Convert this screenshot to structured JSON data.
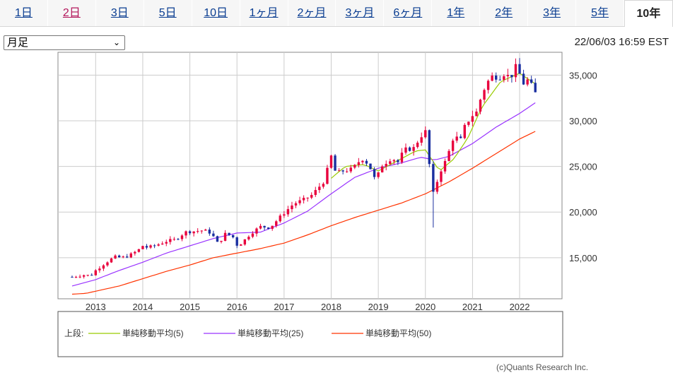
{
  "tabs": [
    {
      "label": "1日",
      "state": "normal"
    },
    {
      "label": "2日",
      "state": "visited"
    },
    {
      "label": "3日",
      "state": "normal"
    },
    {
      "label": "5日",
      "state": "normal"
    },
    {
      "label": "10日",
      "state": "normal"
    },
    {
      "label": "1ヶ月",
      "state": "normal"
    },
    {
      "label": "2ヶ月",
      "state": "normal"
    },
    {
      "label": "3ヶ月",
      "state": "normal"
    },
    {
      "label": "6ヶ月",
      "state": "normal"
    },
    {
      "label": "1年",
      "state": "normal"
    },
    {
      "label": "2年",
      "state": "normal"
    },
    {
      "label": "3年",
      "state": "normal"
    },
    {
      "label": "5年",
      "state": "normal"
    },
    {
      "label": "10年",
      "state": "active"
    }
  ],
  "select": {
    "value": "月足"
  },
  "timestamp": "22/06/03 16:59 EST",
  "copyright": "(c)Quants Research Inc.",
  "colors": {
    "up": "#e8003d",
    "down": "#1a2fa0",
    "ma5": "#99cc00",
    "ma25": "#9933ff",
    "ma50": "#ff3300",
    "grid": "#cccccc"
  },
  "chart_data": {
    "type": "candlestick",
    "title": "",
    "xlabel": "",
    "ylabel": "",
    "x_ticks": [
      "2013",
      "2014",
      "2015",
      "2016",
      "2017",
      "2018",
      "2019",
      "2020",
      "2021",
      "2022"
    ],
    "y_ticks": [
      "15,000",
      "20,000",
      "25,000",
      "30,000",
      "35,000"
    ],
    "y_tick_values": [
      15000,
      20000,
      25000,
      30000,
      35000
    ],
    "ylim": [
      10500,
      37500
    ],
    "x_range": [
      2012.2,
      2022.9
    ],
    "grid": true,
    "legend_prefix": "上段:",
    "legend": [
      {
        "name": "単純移動平均(5)",
        "color": "#99cc00"
      },
      {
        "name": "単純移動平均(25)",
        "color": "#9933ff"
      },
      {
        "name": "単純移動平均(50)",
        "color": "#ff3300"
      }
    ],
    "anchors": [
      [
        2012.5,
        12900
      ],
      [
        2012.75,
        13100
      ],
      [
        2012.9,
        13050
      ],
      [
        2013.0,
        13600
      ],
      [
        2013.2,
        14400
      ],
      [
        2013.4,
        15100
      ],
      [
        2013.55,
        15000
      ],
      [
        2013.7,
        15200
      ],
      [
        2013.9,
        15800
      ],
      [
        2014.0,
        16300
      ],
      [
        2014.1,
        16100
      ],
      [
        2014.3,
        16400
      ],
      [
        2014.5,
        16800
      ],
      [
        2014.7,
        17000
      ],
      [
        2014.9,
        17800
      ],
      [
        2015.1,
        17900
      ],
      [
        2015.3,
        18000
      ],
      [
        2015.45,
        17700
      ],
      [
        2015.6,
        16500
      ],
      [
        2015.75,
        17600
      ],
      [
        2015.9,
        17400
      ],
      [
        2016.0,
        16400
      ],
      [
        2016.1,
        16600
      ],
      [
        2016.3,
        17700
      ],
      [
        2016.5,
        18400
      ],
      [
        2016.7,
        18300
      ],
      [
        2016.85,
        19100
      ],
      [
        2017.0,
        19900
      ],
      [
        2017.2,
        20900
      ],
      [
        2017.4,
        21300
      ],
      [
        2017.6,
        21900
      ],
      [
        2017.85,
        23400
      ],
      [
        2018.0,
        26100
      ],
      [
        2018.1,
        24200
      ],
      [
        2018.25,
        24500
      ],
      [
        2018.45,
        24700
      ],
      [
        2018.65,
        25900
      ],
      [
        2018.8,
        25200
      ],
      [
        2018.95,
        23300
      ],
      [
        2019.05,
        25000
      ],
      [
        2019.3,
        26000
      ],
      [
        2019.4,
        25300
      ],
      [
        2019.55,
        26800
      ],
      [
        2019.75,
        27000
      ],
      [
        2019.9,
        28300
      ],
      [
        2020.0,
        28800
      ],
      [
        2020.1,
        24500
      ],
      [
        2020.17,
        21900
      ],
      [
        2020.3,
        24300
      ],
      [
        2020.45,
        25800
      ],
      [
        2020.6,
        28300
      ],
      [
        2020.75,
        27900
      ],
      [
        2020.85,
        29600
      ],
      [
        2021.0,
        30600
      ],
      [
        2021.1,
        31000
      ],
      [
        2021.2,
        33000
      ],
      [
        2021.35,
        34500
      ],
      [
        2021.45,
        35000
      ],
      [
        2021.55,
        34700
      ],
      [
        2021.7,
        35300
      ],
      [
        2021.8,
        34500
      ],
      [
        2021.9,
        36000
      ],
      [
        2022.0,
        35100
      ],
      [
        2022.1,
        33900
      ],
      [
        2022.2,
        34700
      ],
      [
        2022.3,
        33000
      ],
      [
        2022.4,
        33000
      ]
    ],
    "ma_anchors": {
      "ma5": [
        [
          2018.0,
          23700
        ],
        [
          2018.3,
          25000
        ],
        [
          2018.7,
          25200
        ],
        [
          2019.0,
          24500
        ],
        [
          2019.4,
          25600
        ],
        [
          2019.8,
          26700
        ],
        [
          2020.0,
          26800
        ],
        [
          2020.3,
          24500
        ],
        [
          2020.6,
          25800
        ],
        [
          2020.9,
          28100
        ],
        [
          2021.2,
          31500
        ],
        [
          2021.6,
          34300
        ],
        [
          2022.0,
          35200
        ],
        [
          2022.4,
          33800
        ]
      ],
      "ma25": [
        [
          2012.5,
          11900
        ],
        [
          2013.0,
          12600
        ],
        [
          2013.5,
          13600
        ],
        [
          2014.0,
          14500
        ],
        [
          2014.5,
          15500
        ],
        [
          2015.0,
          16300
        ],
        [
          2015.5,
          17100
        ],
        [
          2016.0,
          17700
        ],
        [
          2016.5,
          17800
        ],
        [
          2017.0,
          18800
        ],
        [
          2017.5,
          20100
        ],
        [
          2018.0,
          22000
        ],
        [
          2018.5,
          23800
        ],
        [
          2019.0,
          24800
        ],
        [
          2019.5,
          25400
        ],
        [
          2019.9,
          26000
        ],
        [
          2020.2,
          25700
        ],
        [
          2020.5,
          26100
        ],
        [
          2021.0,
          27500
        ],
        [
          2021.5,
          29300
        ],
        [
          2022.0,
          30800
        ],
        [
          2022.4,
          32200
        ]
      ],
      "ma50": [
        [
          2012.5,
          11000
        ],
        [
          2012.8,
          11100
        ],
        [
          2013.5,
          11900
        ],
        [
          2014.0,
          12700
        ],
        [
          2014.5,
          13500
        ],
        [
          2015.0,
          14200
        ],
        [
          2015.5,
          15000
        ],
        [
          2016.0,
          15500
        ],
        [
          2016.5,
          16000
        ],
        [
          2017.0,
          16600
        ],
        [
          2017.5,
          17500
        ],
        [
          2018.0,
          18500
        ],
        [
          2018.5,
          19400
        ],
        [
          2019.0,
          20200
        ],
        [
          2019.5,
          21000
        ],
        [
          2020.0,
          22000
        ],
        [
          2020.5,
          23300
        ],
        [
          2021.0,
          24800
        ],
        [
          2021.5,
          26400
        ],
        [
          2022.0,
          28000
        ],
        [
          2022.4,
          29000
        ]
      ]
    }
  }
}
